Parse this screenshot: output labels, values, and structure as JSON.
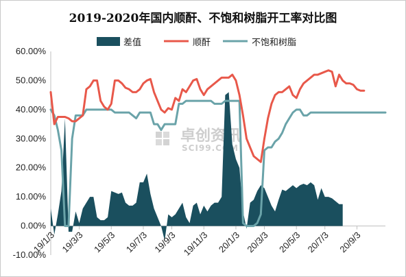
{
  "chart_data": {
    "type": "line",
    "title": "2019-2020年国内顺酐、不饱和树脂开工率对比图",
    "watermark": {
      "cn": "卓创资讯",
      "en": "SCI99.COM"
    },
    "ylim": [
      -0.1,
      0.6
    ],
    "yticks": [
      -0.1,
      0.0,
      0.1,
      0.2,
      0.3,
      0.4,
      0.5,
      0.6
    ],
    "ytick_labels": [
      "-10.00%",
      "0.00%",
      "10.00%",
      "20.00%",
      "30.00%",
      "40.00%",
      "50.00%",
      "60.00%"
    ],
    "x_count": 95,
    "x_ticks": [
      {
        "index": 0,
        "label": "19/1/3"
      },
      {
        "index": 8,
        "label": "19/3/3"
      },
      {
        "index": 17,
        "label": "19/5/3"
      },
      {
        "index": 26,
        "label": "19/7/3"
      },
      {
        "index": 34,
        "label": "19/9/3"
      },
      {
        "index": 43,
        "label": "19/11/3"
      },
      {
        "index": 52,
        "label": "20/1/3"
      },
      {
        "index": 60,
        "label": "20/3/3"
      },
      {
        "index": 69,
        "label": "20/5/3"
      },
      {
        "index": 77,
        "label": "20/7/3"
      },
      {
        "index": 86,
        "label": "20/9/3"
      }
    ],
    "series": [
      {
        "name": "差值",
        "kind": "area",
        "color": "#1a4f5e",
        "values": [
          0.06,
          -0.03,
          0.04,
          0.12,
          0.37,
          -0.02,
          -0.02,
          0.05,
          0.01,
          0.06,
          0.08,
          0.1,
          0.1,
          0.03,
          0.02,
          0.02,
          0.03,
          0.12,
          0.115,
          0.11,
          0.115,
          0.08,
          0.07,
          0.07,
          0.08,
          0.15,
          0.15,
          0.18,
          0.11,
          0.06,
          0.03,
          0.0,
          -0.05,
          0.04,
          0.03,
          0.04,
          0.06,
          0.08,
          0.03,
          0.01,
          0.07,
          0.08,
          0.04,
          0.07,
          0.05,
          0.07,
          0.08,
          0.08,
          0.1,
          0.45,
          0.46,
          0.28,
          0.23,
          0.2,
          0.05,
          -0.01,
          0.08,
          0.09,
          0.12,
          0.14,
          0.13,
          0.1,
          0.07,
          0.05,
          0.09,
          0.125,
          0.12,
          0.13,
          0.14,
          0.13,
          0.14,
          0.145,
          0.14,
          0.15,
          0.14,
          0.09,
          0.13,
          0.1,
          0.1,
          0.095,
          0.085,
          0.075,
          0.075
        ],
        "x_start": 0
      },
      {
        "name": "顺酐",
        "kind": "line",
        "color": "#e8584a",
        "values": [
          0.46,
          0.35,
          0.375,
          0.375,
          0.375,
          0.37,
          0.36,
          0.36,
          0.37,
          0.38,
          0.47,
          0.48,
          0.5,
          0.5,
          0.43,
          0.41,
          0.4,
          0.42,
          0.5,
          0.5,
          0.49,
          0.475,
          0.47,
          0.46,
          0.46,
          0.47,
          0.49,
          0.5,
          0.505,
          0.46,
          0.43,
          0.4,
          0.39,
          0.405,
          0.4,
          0.44,
          0.43,
          0.47,
          0.46,
          0.48,
          0.5,
          0.505,
          0.47,
          0.45,
          0.47,
          0.48,
          0.49,
          0.5,
          0.51,
          0.51,
          0.51,
          0.52,
          0.5,
          0.45,
          0.38,
          0.3,
          0.27,
          0.24,
          0.23,
          0.22,
          0.3,
          0.37,
          0.42,
          0.45,
          0.46,
          0.46,
          0.47,
          0.48,
          0.45,
          0.44,
          0.47,
          0.49,
          0.5,
          0.51,
          0.52,
          0.52,
          0.525,
          0.53,
          0.535,
          0.53,
          0.48,
          0.52,
          0.5,
          0.49,
          0.49,
          0.485,
          0.47,
          0.465,
          0.465
        ],
        "x_start": 0
      },
      {
        "name": "不饱和树脂",
        "kind": "line",
        "color": "#6aa3a9",
        "values": [
          0.4,
          0.38,
          0.33,
          0.26,
          0.0,
          0.0,
          0.3,
          0.38,
          0.38,
          0.38,
          0.4,
          0.4,
          0.4,
          0.4,
          0.4,
          0.4,
          0.4,
          0.4,
          0.39,
          0.39,
          0.39,
          0.39,
          0.39,
          0.38,
          0.37,
          0.39,
          0.39,
          0.39,
          0.39,
          0.35,
          0.35,
          0.33,
          0.35,
          0.35,
          0.35,
          0.35,
          0.42,
          0.42,
          0.43,
          0.43,
          0.43,
          0.43,
          0.43,
          0.43,
          0.43,
          0.43,
          0.42,
          0.42,
          0.42,
          0.43,
          0.43,
          0.43,
          0.43,
          0.43,
          0.01,
          0.0,
          0.0,
          0.0,
          0.01,
          0.04,
          0.26,
          0.27,
          0.27,
          0.29,
          0.3,
          0.32,
          0.35,
          0.37,
          0.39,
          0.4,
          0.4,
          0.38,
          0.38,
          0.39,
          0.39,
          0.39,
          0.39,
          0.39,
          0.39,
          0.39,
          0.39,
          0.39,
          0.39,
          0.39,
          0.39,
          0.39,
          0.39,
          0.39,
          0.39,
          0.39,
          0.39,
          0.39,
          0.39,
          0.39,
          0.39
        ],
        "x_start": 0
      }
    ]
  }
}
